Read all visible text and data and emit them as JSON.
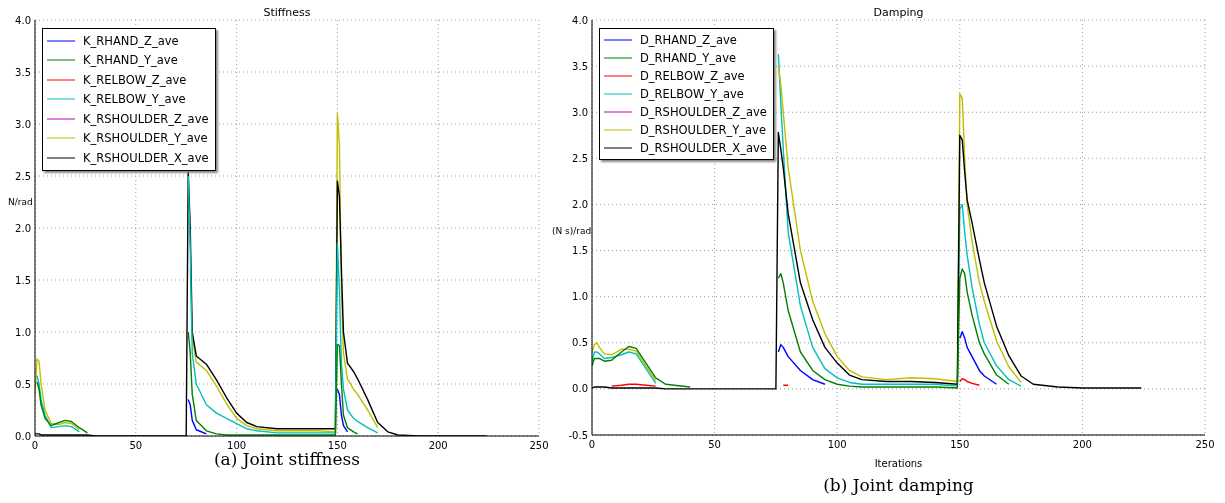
{
  "chart_data": [
    {
      "type": "line",
      "title": "Stiffness",
      "ylabel": "N/rad",
      "annotations": [
        "(a) Joint stiffness"
      ],
      "xlim": [
        0,
        250
      ],
      "xticks": [
        0,
        50,
        100,
        150,
        200,
        250
      ],
      "ylim": [
        0,
        4
      ],
      "yticks": [
        {
          "value": 0,
          "label": "0.0"
        },
        {
          "value": 0.5,
          "label": "0.5"
        },
        {
          "value": 1,
          "label": "1.0"
        },
        {
          "value": 1.5,
          "label": "1.5"
        },
        {
          "value": 2,
          "label": "2.0"
        },
        {
          "value": 2.5,
          "label": "2.5"
        },
        {
          "value": 3,
          "label": "3.0"
        },
        {
          "value": 3.5,
          "label": "3.5"
        },
        {
          "value": 4,
          "label": "4.0"
        }
      ],
      "grid": true,
      "legend": "top left",
      "x": [
        0,
        1,
        2,
        3,
        5,
        8,
        12,
        15,
        18,
        22,
        26,
        30,
        40,
        50,
        60,
        75,
        76,
        77,
        78,
        80,
        85,
        90,
        95,
        100,
        105,
        110,
        120,
        130,
        140,
        149,
        150,
        151,
        152,
        153,
        155,
        158,
        160,
        165,
        170,
        175,
        180,
        190,
        200,
        224
      ],
      "series": [
        {
          "name": "K_RHAND_Z_ave",
          "color": "#0000ff",
          "values": [
            null,
            null,
            null,
            null,
            null,
            null,
            null,
            null,
            null,
            null,
            null,
            null,
            null,
            null,
            null,
            null,
            0.35,
            0.3,
            0.15,
            0.06,
            0.02,
            null,
            null,
            null,
            null,
            null,
            null,
            null,
            null,
            null,
            0.45,
            0.4,
            0.2,
            0.1,
            0.04,
            null,
            null,
            null,
            null,
            null,
            null,
            null,
            null,
            null
          ]
        },
        {
          "name": "K_RHAND_Y_ave",
          "color": "#008000",
          "values": [
            null,
            0.52,
            0.45,
            0.3,
            0.17,
            0.1,
            0.13,
            0.15,
            0.14,
            0.08,
            0.03,
            null,
            null,
            null,
            null,
            null,
            1.0,
            0.8,
            0.4,
            0.15,
            0.05,
            0.02,
            0.01,
            0.01,
            0.01,
            0.01,
            0.01,
            0.01,
            0.01,
            0.01,
            0.88,
            0.87,
            0.5,
            0.2,
            0.08,
            0.04,
            0.02,
            null,
            null,
            null,
            null,
            null,
            null,
            null
          ]
        },
        {
          "name": "K_RELBOW_Z_ave",
          "color": "#ff0000",
          "values": [
            null,
            null,
            null,
            null,
            null,
            null,
            null,
            null,
            null,
            null,
            null,
            null,
            null,
            null,
            null,
            null,
            null,
            null,
            null,
            null,
            null,
            null,
            null,
            null,
            null,
            null,
            null,
            null,
            null,
            null,
            null,
            null,
            null,
            null,
            null,
            null,
            null,
            null,
            null,
            null,
            null,
            null,
            null,
            null
          ]
        },
        {
          "name": "K_RELBOW_Y_ave",
          "color": "#00bfbf",
          "values": [
            null,
            0.58,
            0.5,
            0.35,
            0.2,
            0.08,
            0.09,
            0.1,
            0.09,
            0.04,
            null,
            null,
            null,
            null,
            null,
            null,
            2.5,
            1.8,
            0.8,
            0.5,
            0.3,
            0.22,
            0.17,
            0.12,
            0.07,
            0.05,
            0.03,
            0.03,
            0.03,
            0.03,
            1.85,
            1.4,
            0.7,
            0.45,
            0.25,
            0.17,
            0.14,
            0.08,
            0.03,
            null,
            null,
            null,
            null,
            null
          ]
        },
        {
          "name": "K_RSHOULDER_Z_ave",
          "color": "#bf00bf",
          "values": [
            null,
            null,
            null,
            null,
            null,
            null,
            null,
            null,
            null,
            null,
            null,
            null,
            null,
            null,
            null,
            null,
            null,
            null,
            null,
            null,
            null,
            null,
            null,
            null,
            null,
            null,
            null,
            null,
            null,
            null,
            null,
            null,
            null,
            null,
            null,
            null,
            null,
            null,
            null,
            null,
            null,
            null,
            null,
            null
          ]
        },
        {
          "name": "K_RSHOULDER_Y_ave",
          "color": "#bfbf00",
          "values": [
            0.4,
            0.74,
            0.72,
            0.5,
            0.25,
            0.12,
            0.11,
            0.13,
            0.12,
            0.06,
            null,
            null,
            null,
            null,
            null,
            null,
            null,
            1.6,
            0.95,
            0.71,
            0.63,
            0.48,
            0.31,
            0.17,
            0.1,
            0.07,
            0.05,
            0.05,
            0.05,
            0.04,
            3.1,
            2.8,
            1.4,
            0.8,
            0.55,
            0.45,
            0.4,
            0.25,
            0.08,
            null,
            null,
            null,
            null,
            null
          ]
        },
        {
          "name": "K_RSHOULDER_X_ave",
          "color": "#000000",
          "values": [
            0.02,
            0.02,
            0.02,
            0.01,
            0.01,
            0.01,
            0.01,
            0.01,
            0.01,
            0.01,
            0.01,
            0,
            0,
            0,
            0,
            0,
            2.55,
            2.0,
            1.0,
            0.77,
            0.69,
            0.54,
            0.37,
            0.22,
            0.13,
            0.09,
            0.07,
            0.07,
            0.07,
            0.07,
            2.45,
            2.3,
            1.6,
            1.0,
            0.7,
            0.62,
            0.55,
            0.35,
            0.13,
            0.04,
            0.01,
            0,
            0,
            0
          ]
        }
      ]
    },
    {
      "type": "line",
      "title": "Damping",
      "xlabel": "Iterations",
      "ylabel": "(N s)/rad",
      "annotations": [
        "(b) Joint damping"
      ],
      "xlim": [
        0,
        250
      ],
      "xticks": [
        0,
        50,
        100,
        150,
        200,
        250
      ],
      "ylim": [
        -0.5,
        4
      ],
      "yticks": [
        -0.5,
        {
          "value": 0,
          "label": "0.0"
        },
        0.5,
        {
          "value": 1,
          "label": "1.0"
        },
        1.5,
        {
          "value": 2,
          "label": "2.0"
        },
        2.5,
        {
          "value": 3,
          "label": "3.0"
        },
        3.5,
        {
          "value": 4,
          "label": "4.0"
        }
      ],
      "grid": true,
      "legend": "top left",
      "x": [
        0,
        1,
        2,
        3,
        5,
        8,
        12,
        15,
        18,
        22,
        26,
        30,
        40,
        50,
        60,
        75,
        76,
        77,
        78,
        80,
        85,
        90,
        95,
        100,
        105,
        110,
        120,
        130,
        140,
        149,
        150,
        151,
        152,
        153,
        155,
        158,
        160,
        165,
        170,
        175,
        180,
        190,
        200,
        224
      ],
      "series": [
        {
          "name": "D_RHAND_Z_ave",
          "color": "#0000ff",
          "values": [
            null,
            null,
            null,
            null,
            null,
            null,
            null,
            null,
            null,
            null,
            null,
            null,
            null,
            null,
            null,
            null,
            0.4,
            0.48,
            0.45,
            0.35,
            0.2,
            0.1,
            0.05,
            null,
            null,
            null,
            null,
            null,
            null,
            null,
            0.55,
            0.62,
            0.55,
            0.45,
            0.35,
            0.2,
            0.14,
            0.05,
            null,
            null,
            null,
            null,
            null,
            null
          ]
        },
        {
          "name": "D_RHAND_Y_ave",
          "color": "#008000",
          "values": [
            0.25,
            0.33,
            0.33,
            0.33,
            0.3,
            0.31,
            0.4,
            0.46,
            0.44,
            0.28,
            0.12,
            0.05,
            0.02,
            null,
            null,
            null,
            1.2,
            1.25,
            1.15,
            0.85,
            0.4,
            0.2,
            0.1,
            0.05,
            0.03,
            0.02,
            0.02,
            0.02,
            0.02,
            0.01,
            1.2,
            1.3,
            1.25,
            1.05,
            0.8,
            0.5,
            0.38,
            0.15,
            0.05,
            null,
            null,
            null,
            null,
            null
          ]
        },
        {
          "name": "D_RELBOW_Z_ave",
          "color": "#ff0000",
          "values": [
            null,
            null,
            null,
            null,
            null,
            0.03,
            0.04,
            0.05,
            0.05,
            0.04,
            0.03,
            null,
            null,
            null,
            null,
            null,
            null,
            null,
            0.04,
            0.04,
            null,
            null,
            null,
            null,
            null,
            null,
            null,
            null,
            null,
            null,
            0.08,
            0.11,
            0.1,
            0.08,
            0.06,
            0.04,
            null,
            null,
            null,
            null,
            null,
            null,
            null,
            null
          ]
        },
        {
          "name": "D_RELBOW_Y_ave",
          "color": "#00bfbf",
          "values": [
            0.3,
            0.4,
            0.4,
            0.38,
            0.33,
            0.34,
            0.37,
            0.4,
            0.38,
            0.22,
            0.06,
            null,
            null,
            null,
            null,
            null,
            3.63,
            3.1,
            2.6,
            1.7,
            0.9,
            0.45,
            0.22,
            0.12,
            0.07,
            0.05,
            0.05,
            0.05,
            0.05,
            0.03,
            1.95,
            2.0,
            1.7,
            1.45,
            1.1,
            0.7,
            0.5,
            0.25,
            0.1,
            0.03,
            null,
            null,
            null,
            null
          ]
        },
        {
          "name": "D_RSHOULDER_Z_ave",
          "color": "#bf00bf",
          "values": [
            null,
            null,
            null,
            null,
            null,
            null,
            null,
            null,
            null,
            null,
            null,
            null,
            null,
            null,
            null,
            null,
            null,
            null,
            null,
            null,
            null,
            null,
            null,
            null,
            null,
            null,
            null,
            null,
            null,
            null,
            null,
            null,
            null,
            null,
            null,
            null,
            null,
            null,
            null,
            null,
            null,
            null,
            null,
            null
          ]
        },
        {
          "name": "D_RSHOULDER_Y_ave",
          "color": "#bfbf00",
          "values": [
            0.4,
            0.48,
            0.5,
            0.45,
            0.38,
            0.37,
            0.43,
            0.43,
            0.41,
            0.25,
            0.09,
            null,
            null,
            null,
            null,
            null,
            3.5,
            3.3,
            3.0,
            2.4,
            1.5,
            0.95,
            0.6,
            0.35,
            0.2,
            0.13,
            0.1,
            0.12,
            0.11,
            0.08,
            3.2,
            3.15,
            2.5,
            2.0,
            1.6,
            1.15,
            0.95,
            0.52,
            0.24,
            0.07,
            null,
            null,
            null,
            null
          ]
        },
        {
          "name": "D_RSHOULDER_X_ave",
          "color": "#000000",
          "values": [
            0.01,
            0.02,
            0.02,
            0.02,
            0.02,
            0.01,
            0.01,
            0.01,
            0.01,
            0.01,
            0.01,
            0,
            0,
            0,
            0,
            0,
            2.78,
            2.6,
            2.4,
            1.9,
            1.15,
            0.75,
            0.45,
            0.28,
            0.15,
            0.1,
            0.08,
            0.08,
            0.07,
            0.05,
            2.75,
            2.7,
            2.35,
            2.05,
            1.8,
            1.4,
            1.15,
            0.68,
            0.36,
            0.14,
            0.05,
            0.02,
            0.01,
            0.01
          ]
        }
      ]
    }
  ]
}
